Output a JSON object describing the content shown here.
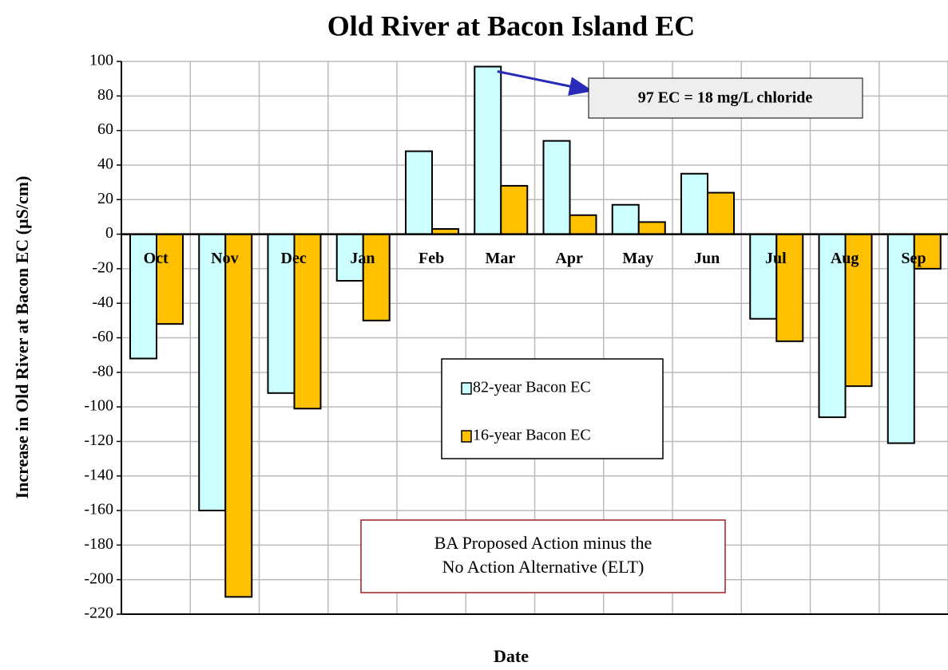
{
  "chart_data": {
    "type": "bar",
    "title": "Old River at Bacon Island EC",
    "x_label": "Date",
    "y_label": "Increase in Old River at Bacon EC (µS/cm)",
    "categories": [
      "Oct",
      "Nov",
      "Dec",
      "Jan",
      "Feb",
      "Mar",
      "Apr",
      "May",
      "Jun",
      "Jul",
      "Aug",
      "Sep"
    ],
    "series": [
      {
        "name": "82-year Bacon EC",
        "color": "#ccffff",
        "values": [
          -72,
          -160,
          -92,
          -27,
          48,
          97,
          54,
          17,
          35,
          -49,
          -106,
          -121
        ]
      },
      {
        "name": "16-year Bacon EC",
        "color": "#ffc000",
        "values": [
          -52,
          -210,
          -101,
          -50,
          3,
          28,
          11,
          7,
          24,
          -62,
          -88,
          -20
        ]
      }
    ],
    "ylim": [
      -220,
      100
    ],
    "yticks": [
      -220,
      -200,
      -180,
      -160,
      -140,
      -120,
      -100,
      -80,
      -60,
      -40,
      -20,
      0,
      20,
      40,
      60,
      80,
      100
    ],
    "grid": true,
    "annotations": [
      "97 EC = 18 mg/L chloride",
      [
        "BA Proposed Action minus the",
        "No Action Alternative (ELT)"
      ]
    ]
  }
}
